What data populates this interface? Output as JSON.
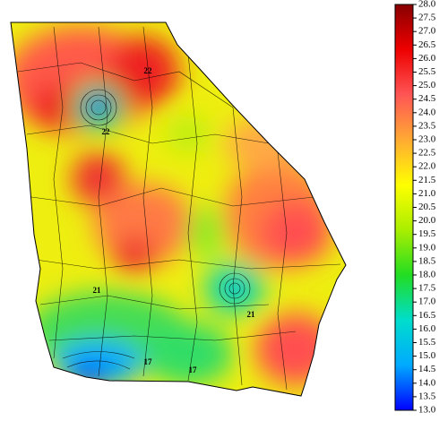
{
  "map": {
    "contour_labels": [
      "22",
      "22",
      "17",
      "21",
      "17",
      "21"
    ],
    "colorbar": {
      "lim": [
        13,
        28
      ],
      "colors": [
        "#0000ff",
        "#00aaff",
        "#00ddcc",
        "#22dd22",
        "#aaee00",
        "#ffff00",
        "#ffaa33",
        "#ff5555",
        "#ee0000",
        "#880000"
      ],
      "ticks": [
        {
          "value": 13,
          "label": "13.0"
        },
        13.5,
        {
          "value": 14,
          "label": "14.0"
        },
        14.5,
        {
          "value": 15,
          "label": "15.0"
        },
        15.5,
        {
          "value": 16,
          "label": "16.0"
        },
        16.5,
        {
          "value": 17,
          "label": "17.0"
        },
        17.5,
        {
          "value": 18,
          "label": "18.0"
        },
        18.5,
        {
          "value": 19,
          "label": "19.0"
        },
        19.5,
        {
          "value": 20,
          "label": "20.0"
        },
        20.5,
        {
          "value": 21,
          "label": "21.0"
        },
        21.5,
        {
          "value": 22,
          "label": "22.0"
        },
        22.5,
        {
          "value": 23,
          "label": "23.0"
        },
        23.5,
        {
          "value": 24,
          "label": "24.0"
        },
        24.5,
        {
          "value": 25,
          "label": "25.0"
        },
        25.5,
        {
          "value": 26,
          "label": "26.0"
        },
        26.5,
        {
          "value": 27,
          "label": "27.0"
        },
        27.5,
        {
          "value": 28,
          "label": "28.0"
        }
      ]
    }
  }
}
